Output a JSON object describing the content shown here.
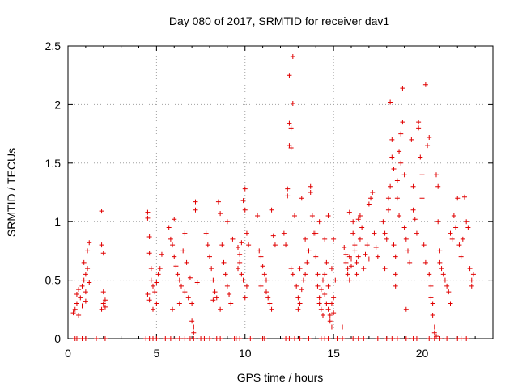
{
  "chart_data": {
    "type": "scatter",
    "title": "Day 080 of 2017, SRMTID for receiver dav1",
    "xlabel": "GPS time / hours",
    "ylabel": "SRMTID / TECUs",
    "xlim": [
      0,
      24
    ],
    "ylim": [
      0,
      2.5
    ],
    "x_ticks": [
      0,
      5,
      10,
      15,
      20
    ],
    "x_tick_labels": [
      "0",
      "5",
      "10",
      "15",
      "20"
    ],
    "y_ticks": [
      0,
      0.5,
      1,
      1.5,
      2,
      2.5
    ],
    "y_tick_labels": [
      "0",
      "0.5",
      "1",
      "1.5",
      "2",
      "2.5"
    ],
    "grid": true,
    "marker": "plus",
    "series": [
      {
        "name": "SRMTID",
        "color": "#e00000",
        "points": [
          [
            0.3,
            0.22
          ],
          [
            0.4,
            0.25
          ],
          [
            0.5,
            0.3
          ],
          [
            0.5,
            0.38
          ],
          [
            0.6,
            0.42
          ],
          [
            0.7,
            0.35
          ],
          [
            0.8,
            0.28
          ],
          [
            0.8,
            0.45
          ],
          [
            0.9,
            0.5
          ],
          [
            1.0,
            0.4
          ],
          [
            1.0,
            0.55
          ],
          [
            1.1,
            0.6
          ],
          [
            1.1,
            0.75
          ],
          [
            1.2,
            0.82
          ],
          [
            1.2,
            0.48
          ],
          [
            1.0,
            0.32
          ],
          [
            0.6,
            0.2
          ],
          [
            0.9,
            0.65
          ],
          [
            1.9,
            1.09
          ],
          [
            1.9,
            0.8
          ],
          [
            2.0,
            0.73
          ],
          [
            2.0,
            0.4
          ],
          [
            2.0,
            0.3
          ],
          [
            2.1,
            0.27
          ],
          [
            2.1,
            0.33
          ],
          [
            1.9,
            0.25
          ],
          [
            4.5,
            1.08
          ],
          [
            4.5,
            1.03
          ],
          [
            4.6,
            0.87
          ],
          [
            4.6,
            0.73
          ],
          [
            4.7,
            0.6
          ],
          [
            4.7,
            0.5
          ],
          [
            4.8,
            0.45
          ],
          [
            4.5,
            0.38
          ],
          [
            4.6,
            0.33
          ],
          [
            4.9,
            0.4
          ],
          [
            5.0,
            0.48
          ],
          [
            5.1,
            0.55
          ],
          [
            5.2,
            0.6
          ],
          [
            5.3,
            0.72
          ],
          [
            5.0,
            0.3
          ],
          [
            4.8,
            0.25
          ],
          [
            5.7,
            0.95
          ],
          [
            5.8,
            0.85
          ],
          [
            5.9,
            0.8
          ],
          [
            6.0,
            0.7
          ],
          [
            6.0,
            1.02
          ],
          [
            6.1,
            0.62
          ],
          [
            6.2,
            0.55
          ],
          [
            6.3,
            0.5
          ],
          [
            6.4,
            0.45
          ],
          [
            6.5,
            0.75
          ],
          [
            6.6,
            0.4
          ],
          [
            6.7,
            0.65
          ],
          [
            6.8,
            0.35
          ],
          [
            6.9,
            0.52
          ],
          [
            7.0,
            0.3
          ],
          [
            7.0,
            0.15
          ],
          [
            7.1,
            0.1
          ],
          [
            7.2,
            1.17
          ],
          [
            7.2,
            1.1
          ],
          [
            7.3,
            0.48
          ],
          [
            6.6,
            0.9
          ],
          [
            6.3,
            0.3
          ],
          [
            5.9,
            0.25
          ],
          [
            7.1,
            0.05
          ],
          [
            7.8,
            0.9
          ],
          [
            7.9,
            0.8
          ],
          [
            8.0,
            0.7
          ],
          [
            8.1,
            0.6
          ],
          [
            8.2,
            0.5
          ],
          [
            8.3,
            0.4
          ],
          [
            8.4,
            0.35
          ],
          [
            8.5,
            1.17
          ],
          [
            8.6,
            1.07
          ],
          [
            8.7,
            0.8
          ],
          [
            8.8,
            0.65
          ],
          [
            8.9,
            0.55
          ],
          [
            9.0,
            0.45
          ],
          [
            9.1,
            0.38
          ],
          [
            9.2,
            0.3
          ],
          [
            9.3,
            0.85
          ],
          [
            9.0,
            1.0
          ],
          [
            8.6,
            0.25
          ],
          [
            8.2,
            0.33
          ],
          [
            9.6,
            0.78
          ],
          [
            9.7,
            0.72
          ],
          [
            9.8,
            0.82
          ],
          [
            9.9,
            1.18
          ],
          [
            10.0,
            1.28
          ],
          [
            10.0,
            1.1
          ],
          [
            10.1,
            0.9
          ],
          [
            10.2,
            0.8
          ],
          [
            9.7,
            0.65
          ],
          [
            9.8,
            0.55
          ],
          [
            9.9,
            0.5
          ],
          [
            10.0,
            0.35
          ],
          [
            10.1,
            0.45
          ],
          [
            9.6,
            0.6
          ],
          [
            10.7,
            1.05
          ],
          [
            10.8,
            0.75
          ],
          [
            10.9,
            0.7
          ],
          [
            11.0,
            0.62
          ],
          [
            11.1,
            0.55
          ],
          [
            11.2,
            0.4
          ],
          [
            11.3,
            0.35
          ],
          [
            11.4,
            0.3
          ],
          [
            11.5,
            0.25
          ],
          [
            11.5,
            1.1
          ],
          [
            11.6,
            0.88
          ],
          [
            11.7,
            0.8
          ],
          [
            11.2,
            0.5
          ],
          [
            10.9,
            0.45
          ],
          [
            12.2,
            0.9
          ],
          [
            12.3,
            0.8
          ],
          [
            12.4,
            1.28
          ],
          [
            12.4,
            1.22
          ],
          [
            12.5,
            1.84
          ],
          [
            12.5,
            1.65
          ],
          [
            12.5,
            2.25
          ],
          [
            12.6,
            1.8
          ],
          [
            12.6,
            1.63
          ],
          [
            12.7,
            2.01
          ],
          [
            12.7,
            2.41
          ],
          [
            12.6,
            0.6
          ],
          [
            12.7,
            0.55
          ],
          [
            12.8,
            1.05
          ],
          [
            12.9,
            0.45
          ],
          [
            13.0,
            0.35
          ],
          [
            13.0,
            0.25
          ],
          [
            13.1,
            0.3
          ],
          [
            13.2,
            0.42
          ],
          [
            13.3,
            0.5
          ],
          [
            13.4,
            0.55
          ],
          [
            13.5,
            0.65
          ],
          [
            13.6,
            0.75
          ],
          [
            13.7,
            1.3
          ],
          [
            13.7,
            1.25
          ],
          [
            13.8,
            1.05
          ],
          [
            13.9,
            0.9
          ],
          [
            13.2,
            1.2
          ],
          [
            13.4,
            0.85
          ],
          [
            13.1,
            0.6
          ],
          [
            14.0,
            0.7
          ],
          [
            14.1,
            0.55
          ],
          [
            14.1,
            0.45
          ],
          [
            14.2,
            0.35
          ],
          [
            14.2,
            0.3
          ],
          [
            14.3,
            0.25
          ],
          [
            14.3,
            0.42
          ],
          [
            14.4,
            0.5
          ],
          [
            14.4,
            0.2
          ],
          [
            14.5,
            0.55
          ],
          [
            14.5,
            0.38
          ],
          [
            14.6,
            0.3
          ],
          [
            14.6,
            0.65
          ],
          [
            14.7,
            0.25
          ],
          [
            14.7,
            0.45
          ],
          [
            14.8,
            0.2
          ],
          [
            14.8,
            0.15
          ],
          [
            14.9,
            0.3
          ],
          [
            14.9,
            0.1
          ],
          [
            15.0,
            0.35
          ],
          [
            15.0,
            0.22
          ],
          [
            15.0,
            0.85
          ],
          [
            15.1,
            0.5
          ],
          [
            14.2,
            1.0
          ],
          [
            14.5,
            0.85
          ],
          [
            14.9,
            0.6
          ],
          [
            14.0,
            0.9
          ],
          [
            14.7,
            1.05
          ],
          [
            15.6,
            0.78
          ],
          [
            15.7,
            0.72
          ],
          [
            15.7,
            0.65
          ],
          [
            15.8,
            0.6
          ],
          [
            15.8,
            0.55
          ],
          [
            15.9,
            0.7
          ],
          [
            15.9,
            0.5
          ],
          [
            16.0,
            0.68
          ],
          [
            16.0,
            0.62
          ],
          [
            16.1,
            1.0
          ],
          [
            16.1,
            0.9
          ],
          [
            16.2,
            0.75
          ],
          [
            16.2,
            0.8
          ],
          [
            16.3,
            0.65
          ],
          [
            16.3,
            0.55
          ],
          [
            16.4,
            0.7
          ],
          [
            16.5,
            1.05
          ],
          [
            16.5,
            0.85
          ],
          [
            16.6,
            0.95
          ],
          [
            16.7,
            0.6
          ],
          [
            16.8,
            0.72
          ],
          [
            16.9,
            0.8
          ],
          [
            17.0,
            0.68
          ],
          [
            17.1,
            1.2
          ],
          [
            17.2,
            1.25
          ],
          [
            17.3,
            0.9
          ],
          [
            17.4,
            0.78
          ],
          [
            17.5,
            0.7
          ],
          [
            15.5,
            0.1
          ],
          [
            15.9,
            1.08
          ],
          [
            16.4,
            1.02
          ],
          [
            17.0,
            1.15
          ],
          [
            17.8,
            1.0
          ],
          [
            17.9,
            0.9
          ],
          [
            18.0,
            0.85
          ],
          [
            18.1,
            1.2
          ],
          [
            18.1,
            1.1
          ],
          [
            18.2,
            1.3
          ],
          [
            18.2,
            2.02
          ],
          [
            18.3,
            1.7
          ],
          [
            18.3,
            1.55
          ],
          [
            18.4,
            1.45
          ],
          [
            18.4,
            0.8
          ],
          [
            18.5,
            0.7
          ],
          [
            18.5,
            0.55
          ],
          [
            18.6,
            1.35
          ],
          [
            18.6,
            1.2
          ],
          [
            18.7,
            1.6
          ],
          [
            18.7,
            1.05
          ],
          [
            18.8,
            1.75
          ],
          [
            18.8,
            1.5
          ],
          [
            18.9,
            1.85
          ],
          [
            18.9,
            2.14
          ],
          [
            19.0,
            1.4
          ],
          [
            19.0,
            0.95
          ],
          [
            19.1,
            0.85
          ],
          [
            19.2,
            0.75
          ],
          [
            19.3,
            0.65
          ],
          [
            19.4,
            1.7
          ],
          [
            19.5,
            1.3
          ],
          [
            19.5,
            1.1
          ],
          [
            19.6,
            1.02
          ],
          [
            19.7,
            0.9
          ],
          [
            19.8,
            1.85
          ],
          [
            19.8,
            1.8
          ],
          [
            19.9,
            1.55
          ],
          [
            20.0,
            1.4
          ],
          [
            20.0,
            1.2
          ],
          [
            20.1,
            0.8
          ],
          [
            20.2,
            0.65
          ],
          [
            20.2,
            2.17
          ],
          [
            20.3,
            1.65
          ],
          [
            18.5,
            0.45
          ],
          [
            19.1,
            0.25
          ],
          [
            17.9,
            0.6
          ],
          [
            20.4,
            0.55
          ],
          [
            20.5,
            0.45
          ],
          [
            20.5,
            0.35
          ],
          [
            20.6,
            0.3
          ],
          [
            20.6,
            0.2
          ],
          [
            20.7,
            0.1
          ],
          [
            20.7,
            0.05
          ],
          [
            20.8,
            0.02
          ],
          [
            20.8,
            1.4
          ],
          [
            20.9,
            1.3
          ],
          [
            21.0,
            0.75
          ],
          [
            21.0,
            0.65
          ],
          [
            21.1,
            0.6
          ],
          [
            21.2,
            0.55
          ],
          [
            21.3,
            0.5
          ],
          [
            21.4,
            0.45
          ],
          [
            21.5,
            0.4
          ],
          [
            21.6,
            0.9
          ],
          [
            21.7,
            0.85
          ],
          [
            21.8,
            1.05
          ],
          [
            21.9,
            0.95
          ],
          [
            22.0,
            1.2
          ],
          [
            22.1,
            0.8
          ],
          [
            22.2,
            0.7
          ],
          [
            22.4,
            1.21
          ],
          [
            22.5,
            1.0
          ],
          [
            22.6,
            0.95
          ],
          [
            22.7,
            0.6
          ],
          [
            22.8,
            0.5
          ],
          [
            22.8,
            0.45
          ],
          [
            22.9,
            0.55
          ],
          [
            20.9,
            1.0
          ],
          [
            21.6,
            0.3
          ],
          [
            22.3,
            0.85
          ],
          [
            20.4,
            1.72
          ]
        ],
        "zero_points": [
          0.4,
          0.5,
          0.8,
          1.0,
          1.6,
          2.1,
          4.4,
          4.6,
          4.8,
          5.0,
          5.5,
          5.8,
          6.1,
          6.3,
          6.6,
          6.9,
          7.1,
          7.5,
          7.7,
          8.0,
          8.4,
          8.6,
          9.4,
          9.5,
          9.7,
          10.3,
          11.0,
          11.1,
          12.3,
          12.5,
          12.8,
          13.1,
          13.6,
          14.3,
          14.5,
          14.7,
          15.2,
          15.5,
          16.1,
          16.4,
          16.7,
          17.5,
          18.0,
          18.3,
          18.6,
          19.1,
          19.5,
          19.7,
          20.4,
          20.7,
          21.0,
          21.4,
          22.0,
          22.2,
          22.5
        ]
      }
    ]
  }
}
